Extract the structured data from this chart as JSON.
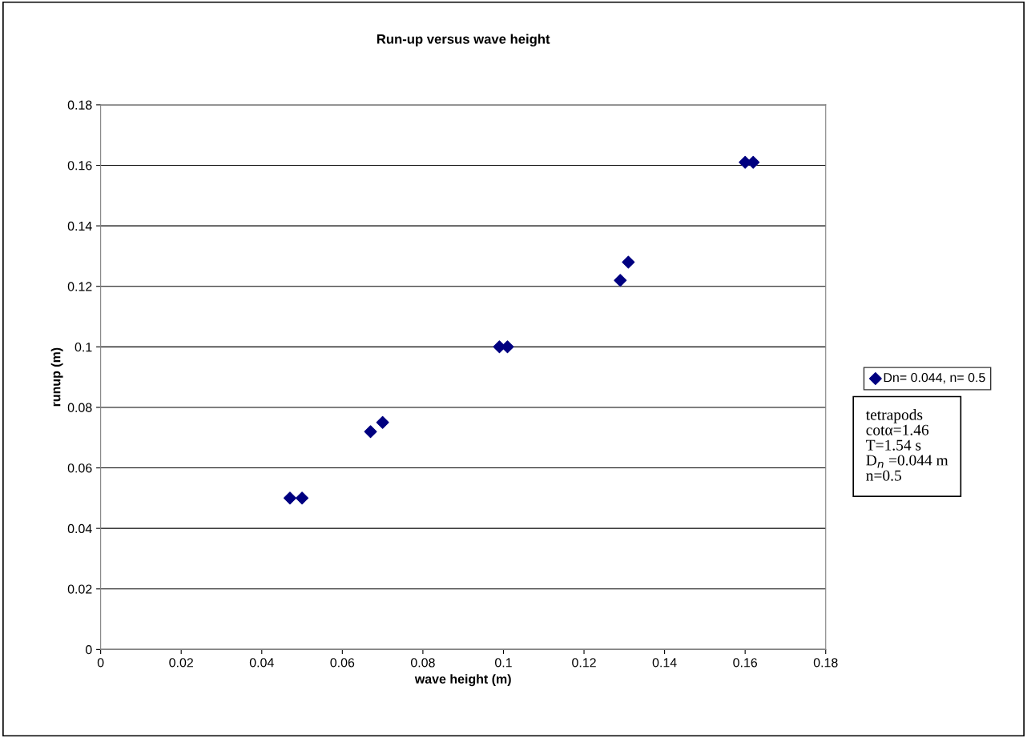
{
  "chart_data": {
    "type": "scatter",
    "title": "Run-up versus wave height",
    "xlabel": "wave height (m)",
    "ylabel": "runup (m)",
    "series": [
      {
        "name": "Dn= 0.044, n= 0.5",
        "color": "#000080",
        "x": [
          0.047,
          0.05,
          0.067,
          0.07,
          0.099,
          0.101,
          0.129,
          0.131,
          0.16,
          0.162
        ],
        "values": [
          0.05,
          0.05,
          0.072,
          0.075,
          0.1,
          0.1,
          0.122,
          0.128,
          0.161,
          0.161
        ]
      }
    ],
    "xlim": [
      0,
      0.18
    ],
    "xticks": [
      0,
      0.02,
      0.04,
      0.06,
      0.08,
      0.1,
      0.12,
      0.14,
      0.16,
      0.18
    ],
    "ylim": [
      0,
      0.18
    ],
    "yticks": [
      0,
      0.02,
      0.04,
      0.06,
      0.08,
      0.1,
      0.12,
      0.14,
      0.16,
      0.18
    ],
    "grid": "y",
    "legend": "right",
    "marker": "diamond",
    "annotations": [
      "tetrapods",
      "cotα=1.46",
      "T=1.54 s",
      "D$_{n}$ =0.044 m",
      "n=0.5"
    ]
  }
}
